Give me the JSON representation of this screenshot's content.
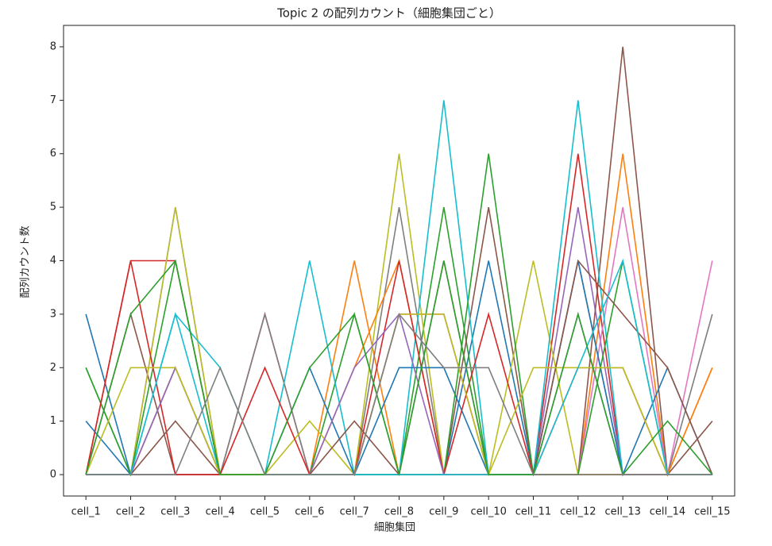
{
  "chart_data": {
    "type": "line",
    "title": "Topic 2 の配列カウント（細胞集団ごと）",
    "x_label": "細胞集団",
    "y_label": "配列カウント数",
    "categories": [
      "cell_1",
      "cell_2",
      "cell_3",
      "cell_4",
      "cell_5",
      "cell_6",
      "cell_7",
      "cell_8",
      "cell_9",
      "cell_10",
      "cell_11",
      "cell_12",
      "cell_13",
      "cell_14",
      "cell_15"
    ],
    "ylim": [
      -0.4,
      8.4
    ],
    "yticks": [
      0,
      1,
      2,
      3,
      4,
      5,
      6,
      7,
      8
    ],
    "grid": false,
    "series": [
      {
        "color": "#1f77b4",
        "values": [
          3,
          0,
          0,
          0,
          0,
          0,
          0,
          0,
          0,
          4,
          0,
          0,
          0,
          0,
          0
        ]
      },
      {
        "color": "#ff7f0e",
        "values": [
          0,
          0,
          0,
          0,
          0,
          0,
          4,
          0,
          0,
          0,
          0,
          0,
          6,
          0,
          2
        ]
      },
      {
        "color": "#2ca02c",
        "values": [
          2,
          0,
          0,
          0,
          0,
          0,
          3,
          0,
          5,
          0,
          0,
          0,
          0,
          0,
          0
        ]
      },
      {
        "color": "#d62728",
        "values": [
          0,
          4,
          4,
          0,
          3,
          0,
          0,
          3,
          3,
          0,
          0,
          6,
          0,
          0,
          0
        ]
      },
      {
        "color": "#9467bd",
        "values": [
          0,
          0,
          5,
          0,
          0,
          0,
          0,
          0,
          0,
          0,
          0,
          5,
          0,
          0,
          0
        ]
      },
      {
        "color": "#8c564b",
        "values": [
          0,
          3,
          0,
          0,
          0,
          0,
          0,
          0,
          0,
          5,
          0,
          0,
          8,
          0,
          1
        ]
      },
      {
        "color": "#e377c2",
        "values": [
          0,
          0,
          0,
          0,
          0,
          0,
          0,
          0,
          0,
          0,
          0,
          0,
          5,
          0,
          4
        ]
      },
      {
        "color": "#7f7f7f",
        "values": [
          0,
          0,
          0,
          0,
          3,
          0,
          0,
          5,
          0,
          0,
          0,
          4,
          0,
          0,
          3
        ]
      },
      {
        "color": "#bcbd22",
        "values": [
          0,
          0,
          5,
          0,
          0,
          1,
          0,
          6,
          0,
          0,
          4,
          0,
          0,
          0,
          0
        ]
      },
      {
        "color": "#17becf",
        "values": [
          0,
          0,
          3,
          0,
          0,
          4,
          0,
          0,
          7,
          0,
          0,
          7,
          0,
          0,
          0
        ]
      },
      {
        "color": "#1f77b4",
        "values": [
          1,
          0,
          2,
          0,
          0,
          2,
          0,
          2,
          2,
          0,
          0,
          4,
          0,
          2,
          0
        ]
      },
      {
        "color": "#ff7f0e",
        "values": [
          0,
          0,
          2,
          0,
          0,
          0,
          2,
          4,
          0,
          0,
          0,
          0,
          0,
          0,
          2
        ]
      },
      {
        "color": "#2ca02c",
        "values": [
          2,
          0,
          4,
          0,
          0,
          0,
          0,
          0,
          0,
          6,
          0,
          0,
          4,
          0,
          0
        ]
      },
      {
        "color": "#d62728",
        "values": [
          0,
          4,
          0,
          0,
          2,
          0,
          0,
          4,
          0,
          3,
          0,
          2,
          2,
          0,
          0
        ]
      },
      {
        "color": "#9467bd",
        "values": [
          0,
          0,
          2,
          0,
          0,
          0,
          2,
          3,
          0,
          0,
          0,
          3,
          0,
          0,
          0
        ]
      },
      {
        "color": "#8c564b",
        "values": [
          0,
          0,
          1,
          0,
          0,
          0,
          1,
          0,
          4,
          0,
          0,
          4,
          3,
          2,
          0
        ]
      },
      {
        "color": "#bcbd22",
        "values": [
          0,
          2,
          2,
          0,
          0,
          0,
          0,
          3,
          3,
          0,
          2,
          2,
          2,
          0,
          0
        ]
      },
      {
        "color": "#17becf",
        "values": [
          0,
          0,
          3,
          2,
          0,
          0,
          0,
          0,
          0,
          0,
          0,
          2,
          4,
          0,
          0
        ]
      },
      {
        "color": "#2ca02c",
        "values": [
          0,
          3,
          4,
          0,
          0,
          2,
          3,
          0,
          4,
          0,
          0,
          3,
          0,
          1,
          0
        ]
      },
      {
        "color": "#7f7f7f",
        "values": [
          0,
          0,
          0,
          2,
          0,
          0,
          0,
          3,
          2,
          2,
          0,
          0,
          0,
          0,
          0
        ]
      }
    ]
  }
}
